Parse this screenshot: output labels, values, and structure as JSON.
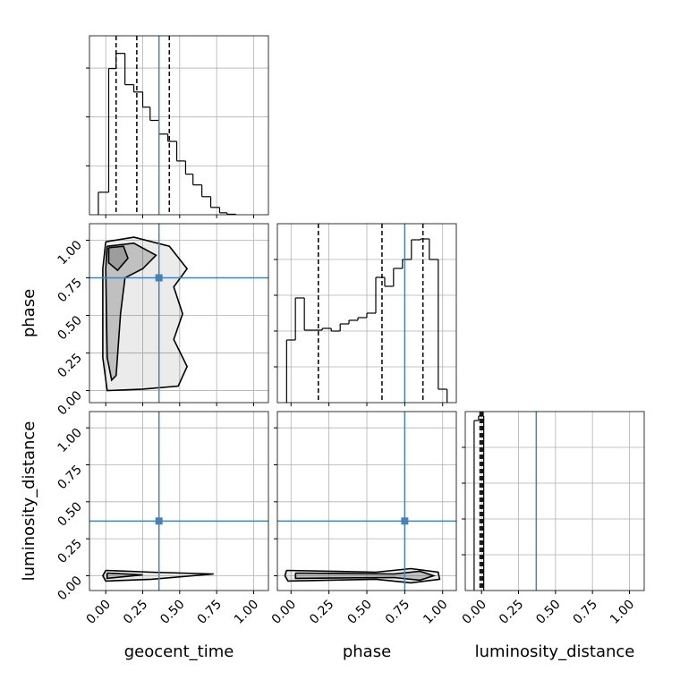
{
  "chart_data": [
    {
      "type": "histogram",
      "bins": [
        -0.05,
        0.02,
        0.07,
        0.13,
        0.19,
        0.25,
        0.3,
        0.36,
        0.42,
        0.48,
        0.54,
        0.59,
        0.65,
        0.71,
        0.77,
        0.82,
        0.88
      ],
      "values": [
        460,
        2990,
        3300,
        2660,
        2510,
        2200,
        1930,
        1650,
        1500,
        1100,
        830,
        610,
        370,
        150,
        40,
        10
      ],
      "color": "#000000",
      "quantiles": [
        0.07,
        0.21,
        0.43
      ],
      "truth": 0.36,
      "truth_color": "#4682b4",
      "xlim": [
        -0.11,
        1.1
      ],
      "ylim": [
        0,
        3660
      ],
      "yticks": [
        1000,
        2000,
        3000
      ],
      "grid": true
    },
    {
      "type": "corner2d",
      "ylabel": "phase",
      "xlim": [
        -0.11,
        1.1
      ],
      "ylim": [
        -0.08,
        1.11
      ],
      "yticks": [
        {
          "value": 0,
          "label": "0.00"
        },
        {
          "value": 0.25,
          "label": "0.25"
        },
        {
          "value": 0.5,
          "label": "0.50"
        },
        {
          "value": 0.75,
          "label": "0.75"
        },
        {
          "value": 1,
          "label": "1.00"
        }
      ],
      "color": "#000000",
      "truth_x": 0.36,
      "truth_y": 0.75,
      "truth_color": "#4682b4",
      "grid": true,
      "contours": [
        {
          "x": [
            0.0,
            0.19,
            0.43,
            0.55,
            0.46,
            0.52,
            0.46,
            0.55,
            0.49,
            0.25,
            0.01,
            -0.02,
            -0.02,
            0.0
          ],
          "y": [
            0.99,
            1.02,
            0.96,
            0.81,
            0.69,
            0.51,
            0.34,
            0.16,
            0.03,
            0.01,
            0.0,
            0.22,
            0.81,
            0.99
          ]
        },
        {
          "x": [
            0.01,
            0.19,
            0.34,
            0.25,
            0.13,
            0.1,
            0.07,
            0.04,
            0.01,
            0.0,
            0.01
          ],
          "y": [
            0.96,
            0.98,
            0.9,
            0.81,
            0.75,
            0.51,
            0.1,
            0.07,
            0.22,
            0.81,
            0.96
          ]
        },
        {
          "x": [
            0.02,
            0.12,
            0.15,
            0.08,
            0.02,
            0.02
          ],
          "y": [
            0.95,
            0.96,
            0.88,
            0.8,
            0.85,
            0.95
          ]
        }
      ]
    },
    {
      "type": "histogram",
      "bins": [
        -0.029,
        0.029,
        0.088,
        0.147,
        0.206,
        0.265,
        0.324,
        0.382,
        0.441,
        0.5,
        0.559,
        0.618,
        0.676,
        0.735,
        0.794,
        0.853,
        0.912,
        0.971,
        1.029
      ],
      "values": [
        70,
        117,
        81,
        81,
        83,
        80,
        88,
        92,
        95,
        100,
        140,
        130,
        150,
        160,
        182,
        183,
        160,
        15
      ],
      "color": "#000000",
      "quantiles": [
        0.18,
        0.6,
        0.87
      ],
      "truth": 0.75,
      "truth_color": "#4682b4",
      "xlim": [
        -0.09,
        1.09
      ],
      "ylim": [
        0,
        200
      ],
      "yticks": [
        40,
        80,
        120,
        160
      ],
      "grid": true
    },
    {
      "type": "corner2d",
      "ylabel": "luminosity_distance",
      "xlabel": "geocent_time",
      "xlim": [
        -0.11,
        1.1
      ],
      "ylim": [
        -0.1,
        1.11
      ],
      "xticks": [
        {
          "value": 0,
          "label": "0.00"
        },
        {
          "value": 0.25,
          "label": "0.25"
        },
        {
          "value": 0.5,
          "label": "0.50"
        },
        {
          "value": 0.75,
          "label": "0.75"
        },
        {
          "value": 1,
          "label": "1.00"
        }
      ],
      "yticks": [
        {
          "value": 0,
          "label": "0.00"
        },
        {
          "value": 0.25,
          "label": "0.25"
        },
        {
          "value": 0.5,
          "label": "0.50"
        },
        {
          "value": 0.75,
          "label": "0.75"
        },
        {
          "value": 1,
          "label": "1.00"
        }
      ],
      "color": "#000000",
      "truth_x": 0.36,
      "truth_y": 0.37,
      "truth_color": "#4682b4",
      "grid": true,
      "contours": [
        {
          "x": [
            0.0,
            0.31,
            0.73,
            0.31,
            0.0,
            -0.02,
            0.0
          ],
          "y": [
            0.036,
            0.024,
            0.012,
            -0.024,
            -0.036,
            0.0,
            0.036
          ]
        },
        {
          "x": [
            0.01,
            0.25,
            0.01,
            0.01
          ],
          "y": [
            0.018,
            0.006,
            -0.018,
            0.018
          ]
        }
      ]
    },
    {
      "type": "corner2d",
      "xlabel": "phase",
      "xlim": [
        -0.09,
        1.09
      ],
      "ylim": [
        -0.1,
        1.11
      ],
      "xticks": [
        {
          "value": 0,
          "label": "0.00"
        },
        {
          "value": 0.25,
          "label": "0.25"
        },
        {
          "value": 0.5,
          "label": "0.50"
        },
        {
          "value": 0.75,
          "label": "0.75"
        },
        {
          "value": 1,
          "label": "1.00"
        }
      ],
      "color": "#000000",
      "truth_x": 0.75,
      "truth_y": 0.37,
      "truth_color": "#4682b4",
      "grid": true,
      "contours": [
        {
          "x": [
            -0.03,
            0.56,
            0.79,
            0.97,
            0.98,
            0.79,
            0.56,
            -0.02,
            -0.04,
            -0.03
          ],
          "y": [
            0.036,
            0.024,
            0.048,
            0.024,
            -0.024,
            -0.048,
            -0.024,
            -0.036,
            0.0,
            0.036
          ]
        },
        {
          "x": [
            0.03,
            0.68,
            0.85,
            0.94,
            0.85,
            0.68,
            0.03,
            0.03
          ],
          "y": [
            0.018,
            0.012,
            0.03,
            0.0,
            -0.03,
            -0.012,
            -0.018,
            0.018
          ]
        }
      ]
    },
    {
      "type": "histogram",
      "xlabel": "luminosity_distance",
      "bins": [
        -0.05,
        -0.02,
        0.015
      ],
      "values": [
        190,
        195
      ],
      "color": "#000000",
      "quantiles": [
        -0.01,
        0.0,
        0.01
      ],
      "truth": 0.37,
      "truth_color": "#4682b4",
      "xlim": [
        -0.11,
        1.1
      ],
      "ylim": [
        0,
        200
      ],
      "yticks": [
        40,
        80,
        120,
        160
      ],
      "xticks": [
        {
          "value": 0,
          "label": "0.00"
        },
        {
          "value": 0.25,
          "label": "0.25"
        },
        {
          "value": 0.5,
          "label": "0.50"
        },
        {
          "value": 0.75,
          "label": "0.75"
        },
        {
          "value": 1,
          "label": "1.00"
        }
      ],
      "grid": true
    }
  ]
}
